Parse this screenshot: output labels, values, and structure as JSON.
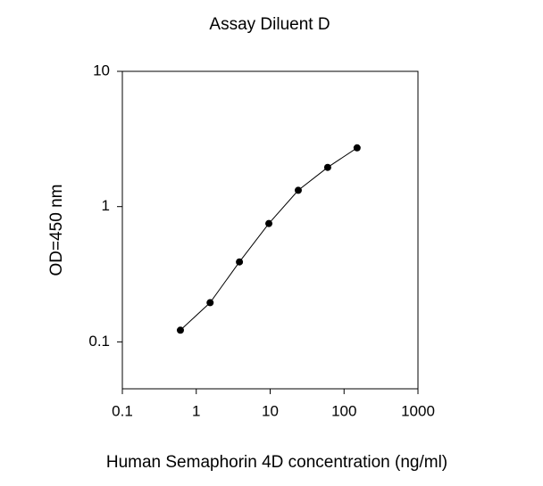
{
  "chart_data": {
    "type": "line",
    "title": "Assay Diluent D",
    "xlabel": "Human Semaphorin 4D concentration (ng/ml)",
    "ylabel": "OD=450 nm",
    "xscale": "log",
    "yscale": "log",
    "x": [
      0.61,
      1.54,
      3.84,
      9.6,
      24,
      60,
      150
    ],
    "series": [
      {
        "color": "#000000",
        "values": [
          0.122,
          0.195,
          0.39,
          0.75,
          1.32,
          1.95,
          2.72
        ]
      }
    ],
    "xlim": [
      0.1,
      1000
    ],
    "xticks": [
      0.1,
      1,
      10,
      100,
      1000
    ],
    "ylim": [
      0.045,
      10
    ],
    "yticks": [
      0.1,
      1,
      10
    ]
  }
}
